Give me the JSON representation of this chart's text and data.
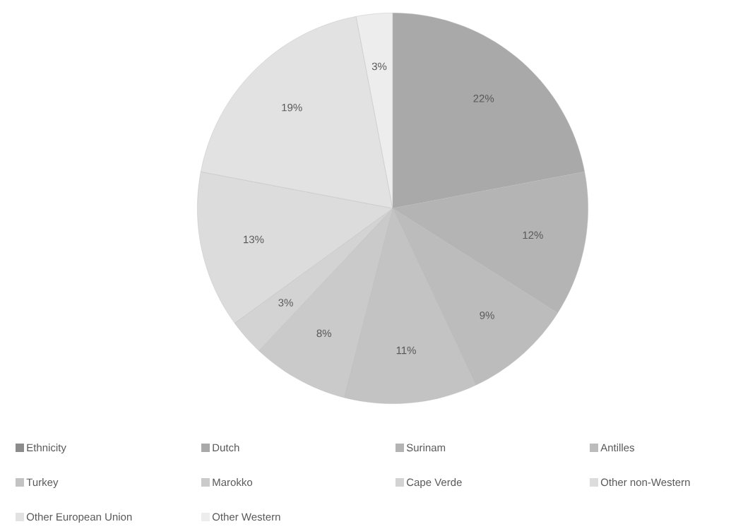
{
  "chart_data": {
    "type": "pie",
    "categories": [
      "Ethnicity",
      "Dutch",
      "Surinam",
      "Antilles",
      "Turkey",
      "Marokko",
      "Cape Verde",
      "Other non-Western",
      "Other European Union",
      "Other Western"
    ],
    "values": [
      0,
      22,
      12,
      9,
      11,
      8,
      3,
      13,
      19,
      3
    ],
    "value_labels": [
      null,
      "22%",
      "12%",
      "9%",
      "11%",
      "8%",
      "3%",
      "13%",
      "19%",
      "3%"
    ],
    "colors": [
      "#8c8c8c",
      "#a9a9a9",
      "#b4b4b4",
      "#bcbcbc",
      "#c3c3c3",
      "#cacaca",
      "#d3d3d3",
      "#dcdcdc",
      "#e2e2e2",
      "#ededed"
    ],
    "legend": "bottom"
  }
}
